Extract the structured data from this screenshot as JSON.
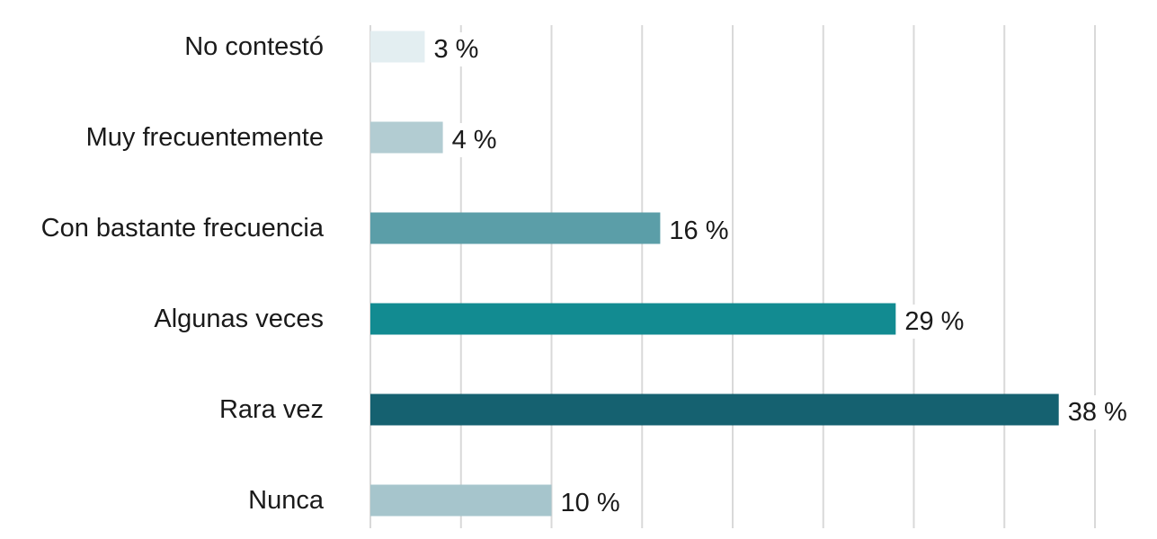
{
  "chart_data": {
    "type": "bar",
    "orientation": "horizontal",
    "categories": [
      "No contestó",
      "Muy frecuentemente",
      "Con bastante frecuencia",
      "Algunas veces",
      "Rara vez",
      "Nunca"
    ],
    "values": [
      3,
      4,
      16,
      29,
      38,
      10
    ],
    "value_labels": [
      "3 %",
      "4 %",
      "16 %",
      "29 %",
      "38 %",
      "10 %"
    ],
    "bar_colors": [
      "#e3eef1",
      "#b2ccd2",
      "#5b9ea8",
      "#128b91",
      "#156170",
      "#a6c5cc"
    ],
    "xlim": [
      0,
      40
    ],
    "grid": true,
    "legend": "none"
  }
}
